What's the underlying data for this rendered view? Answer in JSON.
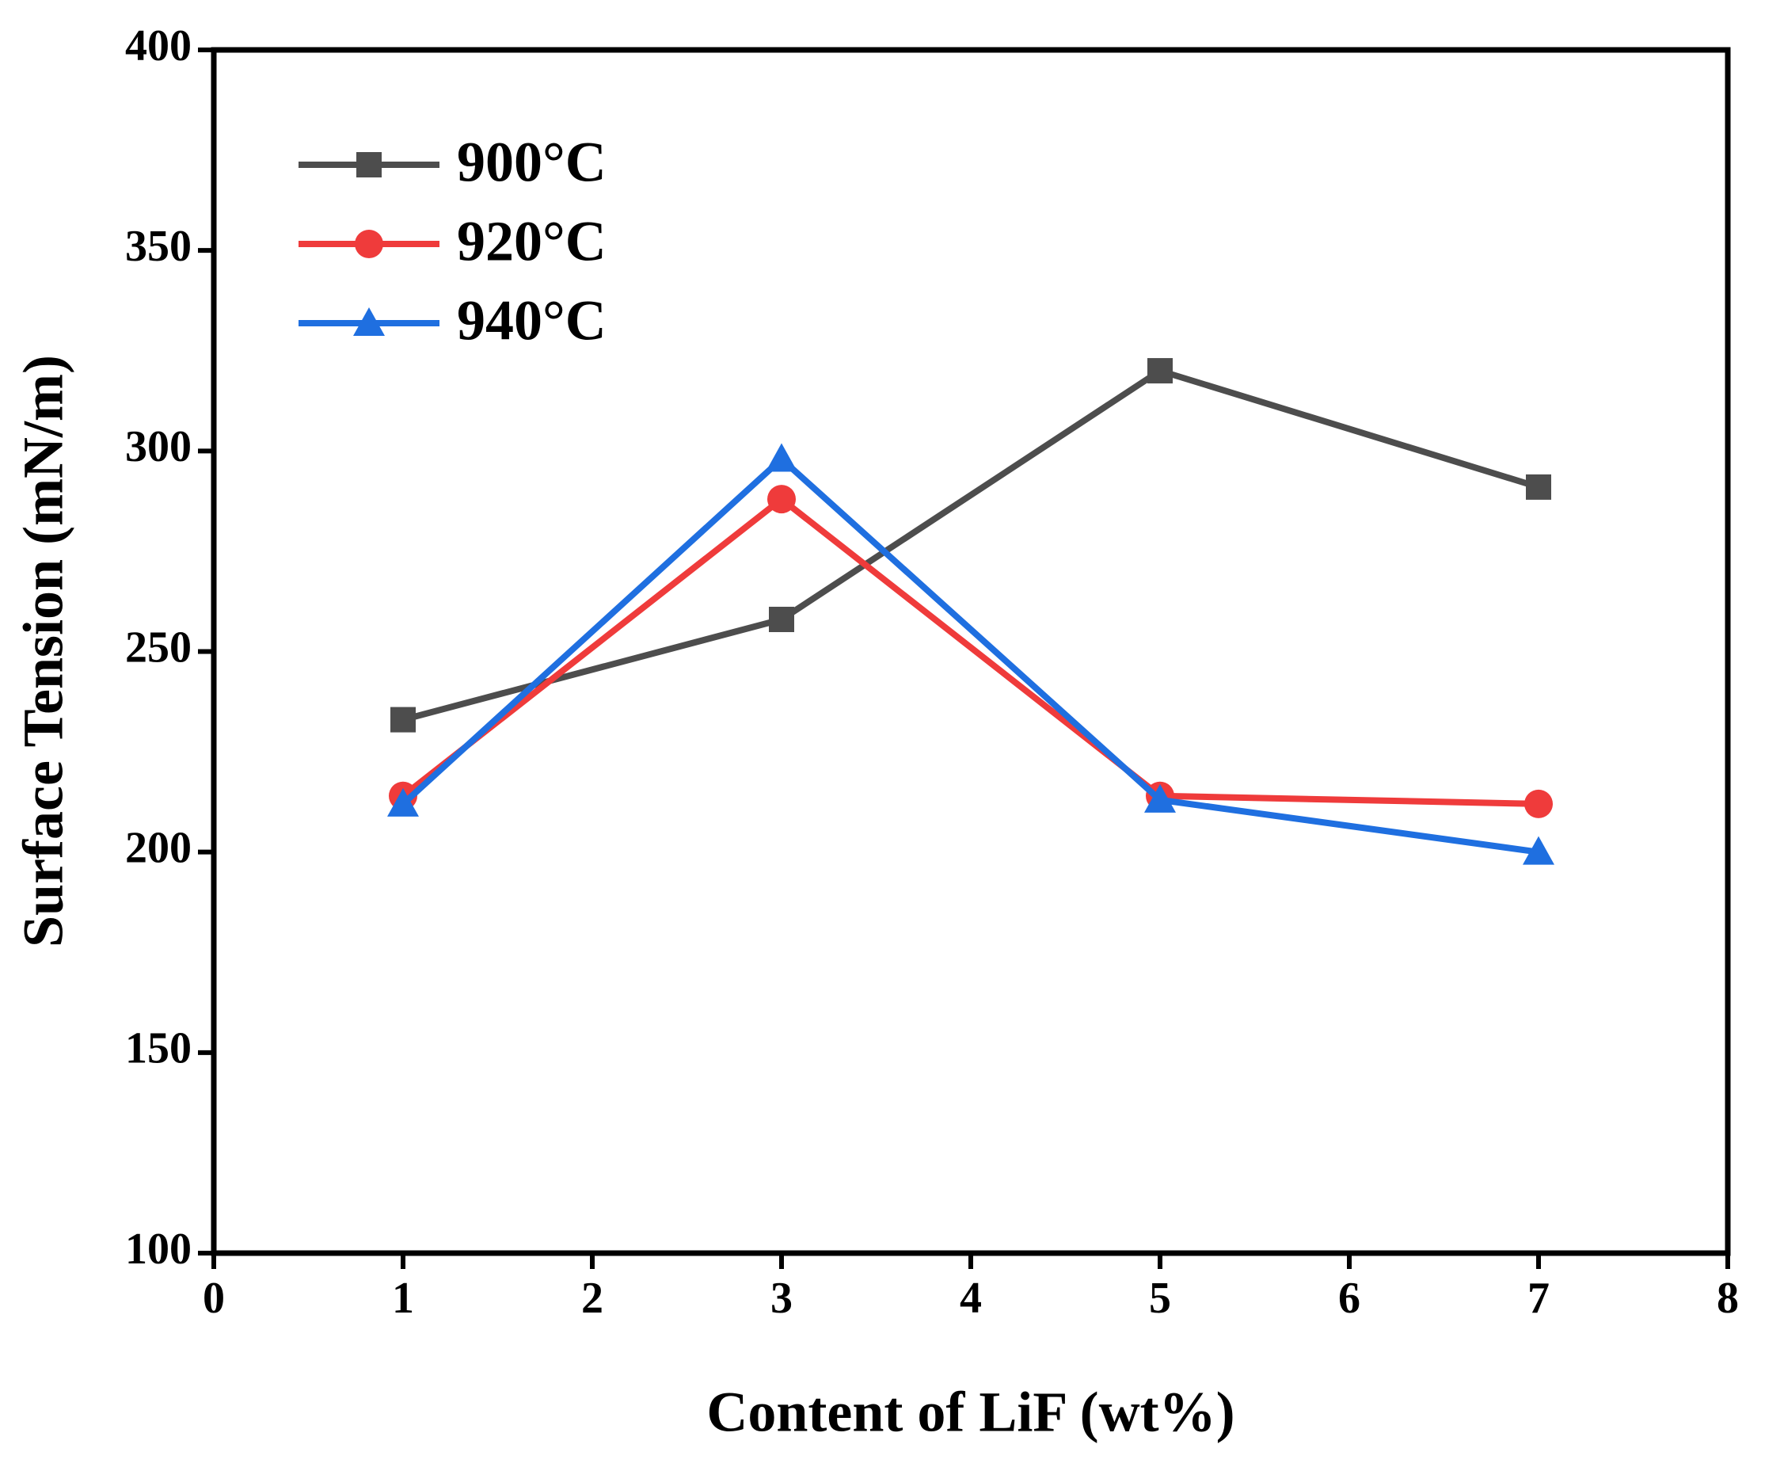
{
  "chart_data": {
    "type": "line",
    "x_label": "Content of LiF (wt%)",
    "y_label": "Surface Tension (mN/m)",
    "x": [
      1,
      3,
      5,
      7
    ],
    "series": [
      {
        "name": "900°C",
        "color": "#4d4d4d",
        "marker": "square",
        "values": [
          233,
          258,
          320,
          291
        ]
      },
      {
        "name": "920°C",
        "color": "#ef3b3b",
        "marker": "circle",
        "values": [
          214,
          288,
          214,
          212
        ]
      },
      {
        "name": "940°C",
        "color": "#1f6fe0",
        "marker": "triangle",
        "values": [
          212,
          298,
          213,
          200
        ]
      }
    ],
    "xlim": [
      0,
      8
    ],
    "xticks": [
      0,
      1,
      2,
      3,
      4,
      5,
      6,
      7,
      8
    ],
    "ylim": [
      100,
      400
    ],
    "yticks": [
      100,
      150,
      200,
      250,
      300,
      350,
      400
    ],
    "legend": "upper left"
  }
}
